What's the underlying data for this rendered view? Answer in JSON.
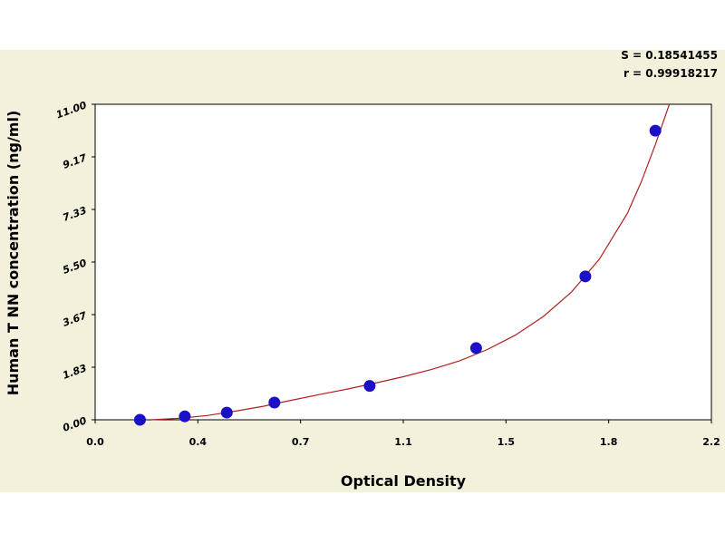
{
  "chart_data": {
    "type": "scatter",
    "title": "",
    "xlabel": "Optical Density",
    "ylabel": "Human T NN concentration (ng/ml)",
    "xlim": [
      0.0,
      2.2
    ],
    "ylim": [
      0.0,
      11.0
    ],
    "x_ticks": [
      "0.0",
      "0.4",
      "0.7",
      "1.1",
      "1.5",
      "1.8",
      "2.2"
    ],
    "y_ticks": [
      "0.00",
      "1.83",
      "3.67",
      "5.50",
      "7.33",
      "9.17",
      "11.00"
    ],
    "grid": true,
    "stats": [
      "S = 0.18541455",
      "r = 0.99918217"
    ],
    "series": [
      {
        "values": [
          {
            "x": 0.16,
            "y": 0.0
          },
          {
            "x": 0.32,
            "y": 0.12
          },
          {
            "x": 0.47,
            "y": 0.25
          },
          {
            "x": 0.64,
            "y": 0.6
          },
          {
            "x": 0.98,
            "y": 1.18
          },
          {
            "x": 1.36,
            "y": 2.5
          },
          {
            "x": 1.75,
            "y": 5.0
          },
          {
            "x": 2.0,
            "y": 10.08
          }
        ],
        "color": "#1a10c8"
      }
    ],
    "fit_curve": {
      "color": "#b02020",
      "points": [
        {
          "x": 0.2,
          "y": 0.0
        },
        {
          "x": 0.3,
          "y": 0.05
        },
        {
          "x": 0.4,
          "y": 0.15
        },
        {
          "x": 0.5,
          "y": 0.3
        },
        {
          "x": 0.6,
          "y": 0.47
        },
        {
          "x": 0.7,
          "y": 0.68
        },
        {
          "x": 0.8,
          "y": 0.88
        },
        {
          "x": 0.9,
          "y": 1.07
        },
        {
          "x": 1.0,
          "y": 1.28
        },
        {
          "x": 1.1,
          "y": 1.5
        },
        {
          "x": 1.2,
          "y": 1.75
        },
        {
          "x": 1.3,
          "y": 2.05
        },
        {
          "x": 1.4,
          "y": 2.45
        },
        {
          "x": 1.5,
          "y": 2.95
        },
        {
          "x": 1.6,
          "y": 3.6
        },
        {
          "x": 1.7,
          "y": 4.45
        },
        {
          "x": 1.8,
          "y": 5.6
        },
        {
          "x": 1.9,
          "y": 7.2
        },
        {
          "x": 1.95,
          "y": 8.3
        },
        {
          "x": 2.0,
          "y": 9.6
        },
        {
          "x": 2.05,
          "y": 11.0
        }
      ]
    }
  }
}
